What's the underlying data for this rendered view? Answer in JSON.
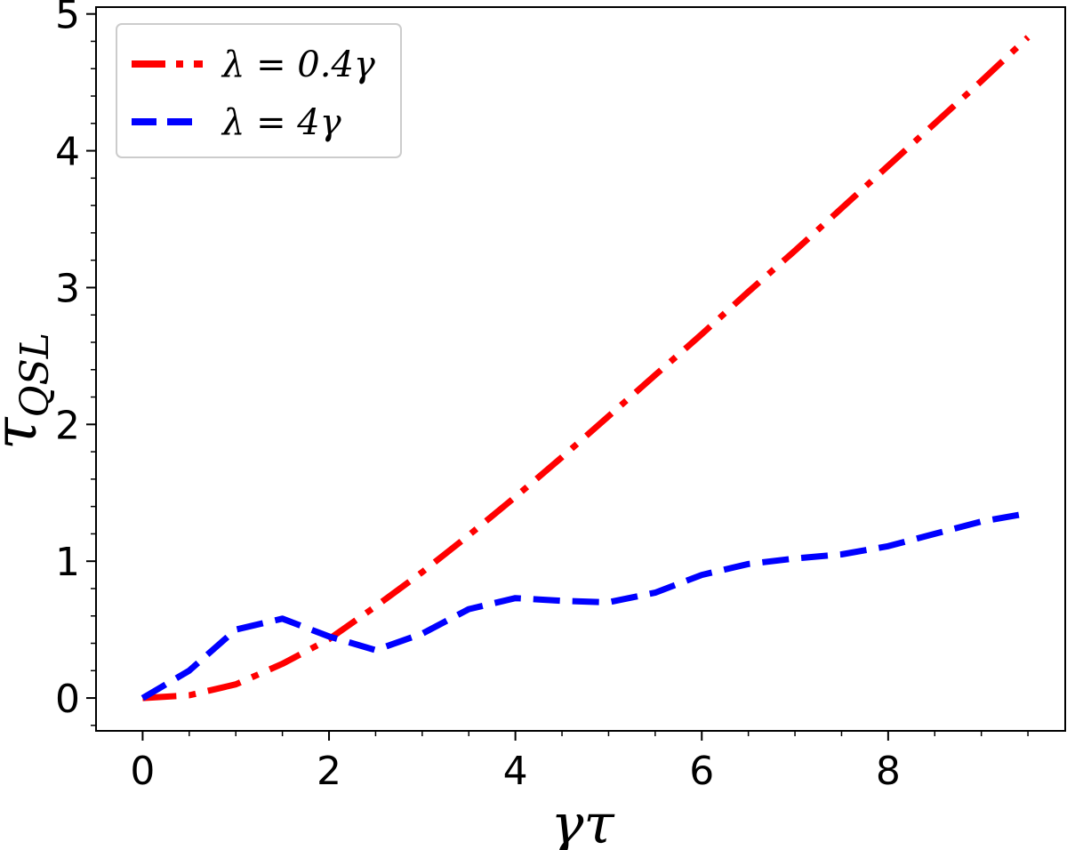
{
  "chart_data": {
    "type": "line",
    "xlabel": "γτ",
    "ylabel_main": "τ",
    "ylabel_sub": "QSL",
    "xlim": [
      -0.5,
      9.9
    ],
    "ylim": [
      -0.24,
      5.05
    ],
    "xticks": [
      0,
      2,
      4,
      6,
      8
    ],
    "yticks": [
      0,
      1,
      2,
      3,
      4,
      5
    ],
    "xtick_labels": [
      "0",
      "2",
      "4",
      "6",
      "8"
    ],
    "ytick_labels": [
      "0",
      "1",
      "2",
      "3",
      "4",
      "5"
    ],
    "legend_position": "top-left",
    "series": [
      {
        "name": "λ = 0.4γ",
        "color": "#ff0000",
        "linestyle": "dashdot",
        "x": [
          0,
          0.5,
          1,
          1.5,
          2,
          2.5,
          3,
          3.5,
          4,
          4.5,
          5,
          5.5,
          6,
          6.5,
          7,
          7.5,
          8,
          8.5,
          9,
          9.5
        ],
        "y": [
          0,
          0.02,
          0.1,
          0.25,
          0.43,
          0.67,
          0.92,
          1.19,
          1.47,
          1.76,
          2.06,
          2.36,
          2.66,
          2.97,
          3.27,
          3.58,
          3.89,
          4.2,
          4.51,
          4.83
        ]
      },
      {
        "name": "λ = 4γ",
        "color": "#0000ff",
        "linestyle": "dashed",
        "x": [
          0,
          0.5,
          1,
          1.5,
          2,
          2.5,
          3,
          3.5,
          4,
          4.5,
          5,
          5.5,
          6,
          6.5,
          7,
          7.5,
          8,
          8.5,
          9,
          9.5
        ],
        "y": [
          0,
          0.2,
          0.5,
          0.58,
          0.45,
          0.35,
          0.47,
          0.65,
          0.73,
          0.71,
          0.7,
          0.77,
          0.9,
          0.98,
          1.02,
          1.05,
          1.11,
          1.2,
          1.29,
          1.35
        ]
      }
    ]
  }
}
